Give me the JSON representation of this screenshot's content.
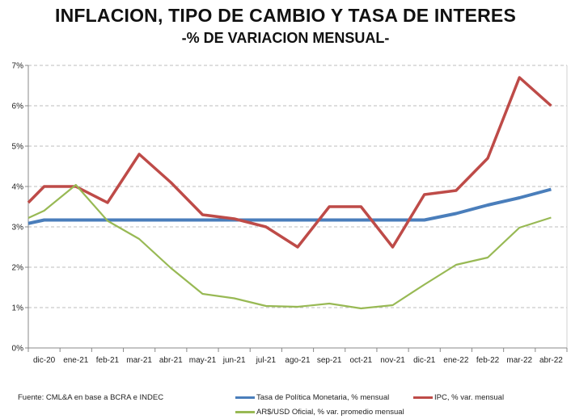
{
  "title": "INFLACION, TIPO DE CAMBIO Y TASA DE INTERES",
  "subtitle": "-% DE VARIACION MENSUAL-",
  "source": "Fuente: CML&A en base a BCRA e INDEC",
  "chart_data": {
    "type": "line",
    "categories": [
      "dic-20",
      "ene-21",
      "feb-21",
      "mar-21",
      "abr-21",
      "may-21",
      "jun-21",
      "jul-21",
      "ago-21",
      "sep-21",
      "oct-21",
      "nov-21",
      "dic-21",
      "ene-22",
      "feb-22",
      "mar-22",
      "abr-22"
    ],
    "leading_partial_point": "nov-20 (line clipped at left axis)",
    "y_ticks": [
      "0%",
      "1%",
      "2%",
      "3%",
      "4%",
      "5%",
      "6%",
      "7%"
    ],
    "ylim": [
      0,
      7
    ],
    "grid": "horizontal dashed",
    "legend": "bottom",
    "series": [
      {
        "name": "Tasa de Política Monetaria, % mensual",
        "color": "#4a7ebb",
        "lead": 3.0,
        "values": [
          3.17,
          3.17,
          3.17,
          3.17,
          3.17,
          3.17,
          3.17,
          3.17,
          3.17,
          3.17,
          3.17,
          3.17,
          3.17,
          3.33,
          3.54,
          3.72,
          3.93
        ]
      },
      {
        "name": "IPC, % var. mensual",
        "color": "#be4b48",
        "lead": 3.2,
        "values": [
          4.0,
          4.0,
          3.6,
          4.8,
          4.1,
          3.3,
          3.2,
          3.0,
          2.5,
          3.5,
          3.5,
          2.5,
          3.8,
          3.9,
          4.7,
          6.7,
          6.0
        ]
      },
      {
        "name": "AR$/USD Oficial, % var. promedio mensual",
        "color": "#98b954",
        "lead": 3.04,
        "values": [
          3.4,
          4.04,
          3.15,
          2.7,
          1.98,
          1.34,
          1.23,
          1.04,
          1.02,
          1.1,
          0.98,
          1.06,
          1.57,
          2.06,
          2.24,
          2.98,
          3.23
        ]
      }
    ]
  }
}
